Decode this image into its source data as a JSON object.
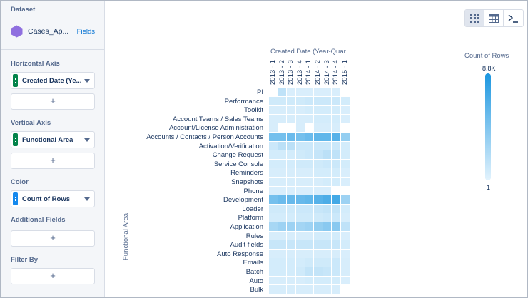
{
  "sidebar": {
    "dataset_label": "Dataset",
    "dataset_name": "Cases_Ap...",
    "fields_link": "Fields",
    "horizontal_axis_label": "Horizontal Axis",
    "horizontal_axis_value": "Created Date (Ye...",
    "vertical_axis_label": "Vertical Axis",
    "vertical_axis_value": "Functional Area",
    "color_label": "Color",
    "color_value": "Count of Rows",
    "additional_fields_label": "Additional Fields",
    "filter_by_label": "Filter By",
    "add_symbol": "+",
    "colors": {
      "dataset_icon": "#8f6fdf",
      "dimension_grip": "#04844b",
      "measure_grip": "#1589ee"
    }
  },
  "toolbar": {
    "buttons": [
      {
        "name": "heatmap-view",
        "icon": "heatmap-grid-icon",
        "active": true
      },
      {
        "name": "table-view",
        "icon": "table-icon",
        "active": false
      },
      {
        "name": "query-editor",
        "icon": "terminal-icon",
        "active": false
      }
    ]
  },
  "chart_data": {
    "type": "heatmap",
    "x_title": "Created Date (Year-Quar...",
    "y_title": "Functional Area",
    "columns": [
      "2013 - 1",
      "2013 - 2",
      "2013 - 3",
      "2013 - 4",
      "2014 - 1",
      "2014 - 2",
      "2014 - 3",
      "2014 - 4",
      "2015 - 1"
    ],
    "rows": [
      "PI",
      "Performance",
      "Toolkit",
      "Account Teams / Sales Teams",
      "Account/License Administration",
      "Accounts / Contacts / Person Accounts",
      "Activation/Verification",
      "Change Request",
      "Service Console",
      "Reminders",
      "Snapshots",
      "Phone",
      "Development",
      "Loader",
      "Platform",
      "Application",
      "Rules",
      "Audit fields",
      "Auto Response",
      "Emails",
      "Batch",
      "Auto",
      "Bulk"
    ],
    "values": [
      [
        null,
        0.18,
        0.05,
        0.05,
        0.05,
        0.05,
        0.05,
        0.05,
        null
      ],
      [
        0.1,
        0.1,
        0.1,
        0.1,
        0.12,
        0.12,
        0.12,
        0.12,
        0.08
      ],
      [
        0.06,
        0.06,
        0.06,
        0.06,
        0.08,
        0.08,
        0.08,
        0.08,
        0.05
      ],
      [
        0.06,
        0.06,
        0.06,
        0.06,
        0.06,
        0.08,
        0.08,
        0.08,
        0.05
      ],
      [
        0.06,
        null,
        null,
        0.06,
        null,
        0.06,
        0.06,
        0.06,
        null
      ],
      [
        0.55,
        0.55,
        0.6,
        0.55,
        0.6,
        0.65,
        0.65,
        0.7,
        0.4
      ],
      [
        0.12,
        0.2,
        0.2,
        0.12,
        0.12,
        0.12,
        0.12,
        0.12,
        0.08
      ],
      [
        0.08,
        0.08,
        0.08,
        0.1,
        0.12,
        0.15,
        0.2,
        0.18,
        0.08
      ],
      [
        0.08,
        0.08,
        0.08,
        0.1,
        0.1,
        0.1,
        0.12,
        0.12,
        0.08
      ],
      [
        0.06,
        0.06,
        0.06,
        0.06,
        0.06,
        0.08,
        0.08,
        0.08,
        0.05
      ],
      [
        0.06,
        0.06,
        0.06,
        0.06,
        0.06,
        0.06,
        0.08,
        0.08,
        0.05
      ],
      [
        0.05,
        0.05,
        0.05,
        0.05,
        0.05,
        0.05,
        0.05,
        null,
        null
      ],
      [
        0.55,
        0.6,
        0.62,
        0.62,
        0.65,
        0.7,
        0.75,
        0.8,
        0.35
      ],
      [
        0.1,
        0.1,
        0.1,
        0.12,
        0.12,
        0.14,
        0.16,
        0.16,
        0.08
      ],
      [
        0.08,
        0.08,
        0.08,
        0.1,
        0.1,
        0.1,
        0.12,
        0.12,
        0.06
      ],
      [
        0.3,
        0.35,
        0.35,
        0.32,
        0.35,
        0.4,
        0.45,
        0.45,
        0.18
      ],
      [
        0.06,
        0.06,
        0.06,
        0.06,
        0.06,
        0.08,
        0.08,
        0.08,
        0.05
      ],
      [
        0.14,
        0.14,
        0.14,
        0.14,
        0.14,
        0.14,
        0.14,
        0.14,
        0.08
      ],
      [
        0.06,
        0.06,
        0.06,
        0.06,
        0.06,
        0.06,
        0.06,
        0.06,
        0.05
      ],
      [
        0.08,
        0.08,
        0.08,
        0.08,
        0.1,
        0.1,
        0.1,
        0.12,
        0.06
      ],
      [
        0.08,
        0.08,
        0.08,
        0.1,
        0.16,
        0.16,
        0.14,
        0.12,
        0.06
      ],
      [
        0.06,
        0.06,
        0.06,
        0.06,
        0.08,
        0.08,
        0.08,
        0.08,
        0.05
      ],
      [
        0.06,
        0.06,
        0.06,
        0.06,
        0.06,
        0.06,
        0.06,
        0.06,
        null
      ]
    ],
    "legend": {
      "title": "Count of Rows",
      "max_label": "8.8K",
      "min_label": "1"
    },
    "colors": {
      "low": "#e3f3fd",
      "high": "#1b96e0"
    }
  }
}
